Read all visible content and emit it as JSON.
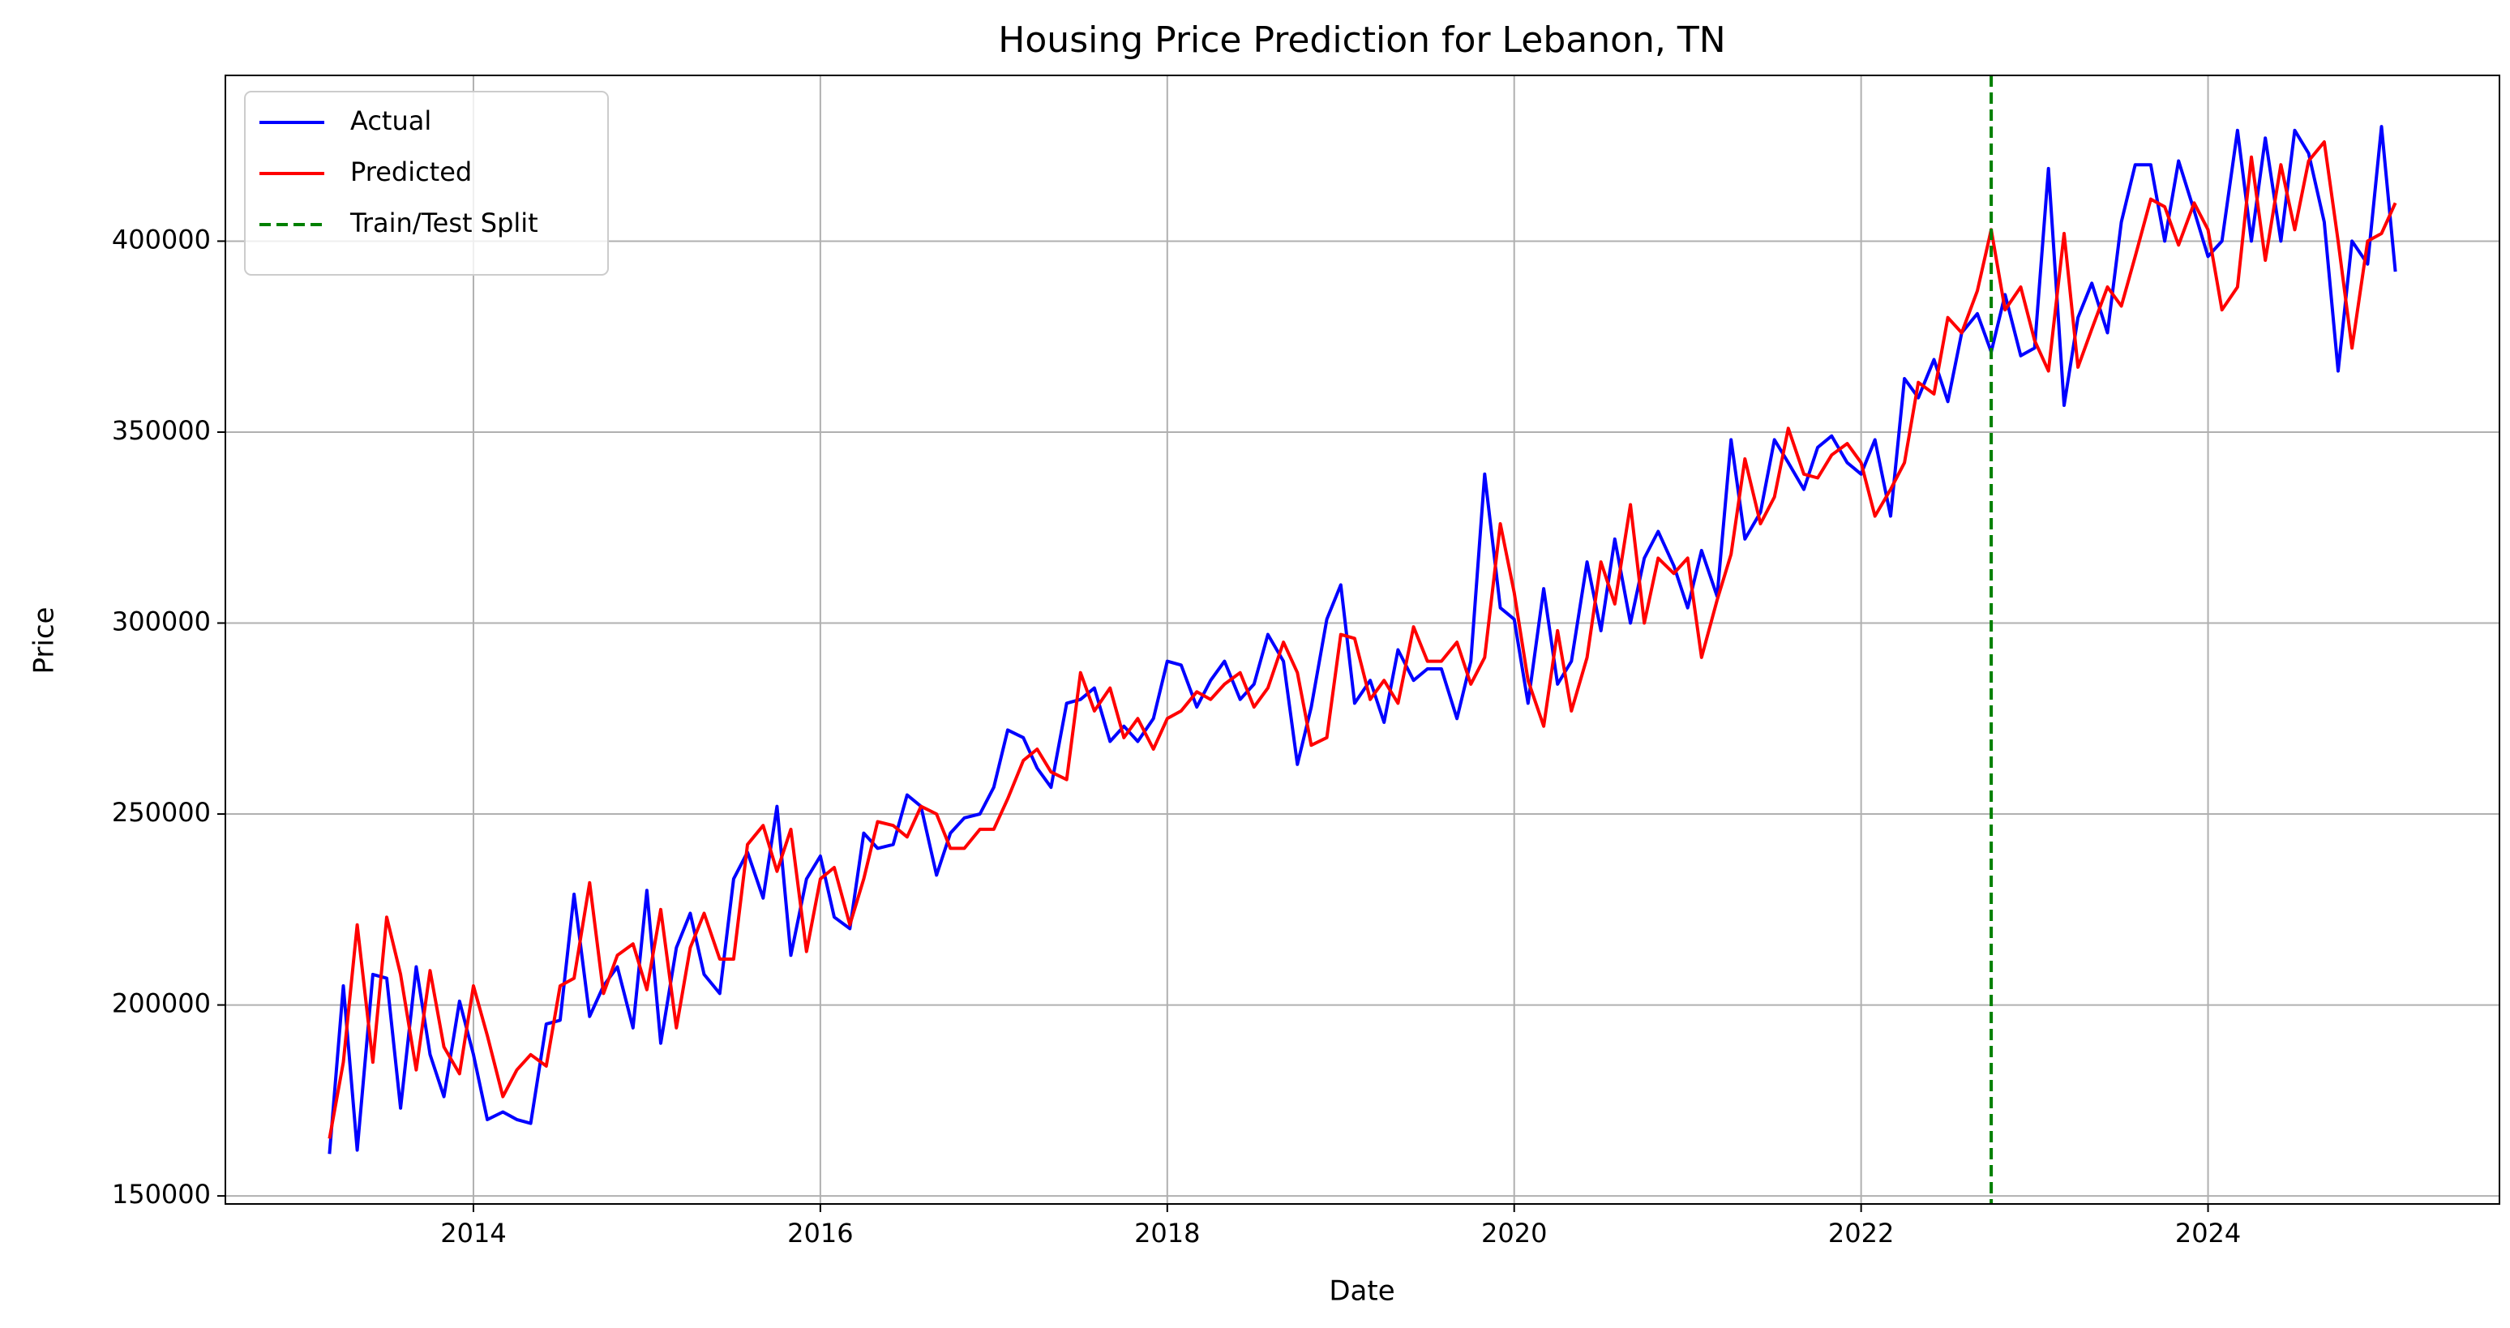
{
  "chart_data": {
    "type": "line",
    "title": "Housing Price Prediction for Lebanon, TN",
    "x_label": "Date",
    "y_label": "Price",
    "x": [
      2013.17,
      2013.25,
      2013.33,
      2013.42,
      2013.5,
      2013.58,
      2013.67,
      2013.75,
      2013.83,
      2013.92,
      2014.0,
      2014.08,
      2014.17,
      2014.25,
      2014.33,
      2014.42,
      2014.5,
      2014.58,
      2014.67,
      2014.75,
      2014.83,
      2014.92,
      2015.0,
      2015.08,
      2015.17,
      2015.25,
      2015.33,
      2015.42,
      2015.5,
      2015.58,
      2015.67,
      2015.75,
      2015.83,
      2015.92,
      2016.0,
      2016.08,
      2016.17,
      2016.25,
      2016.33,
      2016.42,
      2016.5,
      2016.58,
      2016.67,
      2016.75,
      2016.83,
      2016.92,
      2017.0,
      2017.08,
      2017.17,
      2017.25,
      2017.33,
      2017.42,
      2017.5,
      2017.58,
      2017.67,
      2017.75,
      2017.83,
      2017.92,
      2018.0,
      2018.08,
      2018.17,
      2018.25,
      2018.33,
      2018.42,
      2018.5,
      2018.58,
      2018.67,
      2018.75,
      2018.83,
      2018.92,
      2019.0,
      2019.08,
      2019.17,
      2019.25,
      2019.33,
      2019.42,
      2019.5,
      2019.58,
      2019.67,
      2019.75,
      2019.83,
      2019.92,
      2020.0,
      2020.08,
      2020.17,
      2020.25,
      2020.33,
      2020.42,
      2020.5,
      2020.58,
      2020.67,
      2020.75,
      2020.83,
      2020.92,
      2021.0,
      2021.08,
      2021.17,
      2021.25,
      2021.33,
      2021.42,
      2021.5,
      2021.58,
      2021.67,
      2021.75,
      2021.83,
      2021.92,
      2022.0,
      2022.08,
      2022.17,
      2022.25,
      2022.33,
      2022.42,
      2022.5,
      2022.58,
      2022.67,
      2022.75,
      2022.83,
      2022.92,
      2023.0,
      2023.08,
      2023.17,
      2023.25,
      2023.33,
      2023.42,
      2023.5,
      2023.58,
      2023.67,
      2023.75,
      2023.83,
      2023.92,
      2024.0,
      2024.08,
      2024.17,
      2024.25,
      2024.33,
      2024.42,
      2024.5,
      2024.58,
      2024.67,
      2024.75,
      2024.83,
      2024.92,
      2025.0,
      2025.08
    ],
    "series": [
      {
        "name": "Actual",
        "color": "#0000ff",
        "values": [
          161000,
          205000,
          162000,
          208000,
          207000,
          173000,
          210000,
          187000,
          176000,
          201000,
          187000,
          170000,
          172000,
          170000,
          169000,
          195000,
          196000,
          229000,
          197000,
          205000,
          210000,
          194000,
          230000,
          190000,
          215000,
          224000,
          208000,
          203000,
          233000,
          240000,
          228000,
          252000,
          213000,
          233000,
          239000,
          223000,
          220000,
          245000,
          241000,
          242000,
          255000,
          252000,
          234000,
          245000,
          249000,
          250000,
          257000,
          272000,
          270000,
          262000,
          257000,
          279000,
          280000,
          283000,
          269000,
          273000,
          269000,
          275000,
          290000,
          289000,
          278000,
          285000,
          290000,
          280000,
          284000,
          297000,
          290000,
          263000,
          278000,
          301000,
          310000,
          279000,
          285000,
          274000,
          293000,
          285000,
          288000,
          288000,
          275000,
          290000,
          339000,
          304000,
          301000,
          279000,
          309000,
          284000,
          290000,
          316000,
          298000,
          322000,
          300000,
          317000,
          324000,
          315000,
          304000,
          319000,
          307000,
          348000,
          322000,
          329000,
          348000,
          342000,
          335000,
          346000,
          349000,
          342000,
          339000,
          348000,
          328000,
          364000,
          359000,
          369000,
          358000,
          376000,
          381000,
          371000,
          386000,
          370000,
          372000,
          419000,
          357000,
          380000,
          389000,
          376000,
          405000,
          420000,
          420000,
          400000,
          421000,
          408000,
          396000,
          400000,
          429000,
          400000,
          427000,
          400000,
          429000,
          423000,
          405000,
          366000,
          400000,
          394000,
          430000,
          392000
        ]
      },
      {
        "name": "Predicted",
        "color": "#ff0000",
        "values": [
          165000,
          185000,
          221000,
          185000,
          223000,
          208000,
          183000,
          209000,
          189000,
          182000,
          205000,
          192000,
          176000,
          183000,
          187000,
          184000,
          205000,
          207000,
          232000,
          203000,
          213000,
          216000,
          204000,
          225000,
          194000,
          215000,
          224000,
          212000,
          212000,
          242000,
          247000,
          235000,
          246000,
          214000,
          233000,
          236000,
          221000,
          233000,
          248000,
          247000,
          244000,
          252000,
          250000,
          241000,
          241000,
          246000,
          246000,
          254000,
          264000,
          267000,
          261000,
          259000,
          287000,
          277000,
          283000,
          270000,
          275000,
          267000,
          275000,
          277000,
          282000,
          280000,
          284000,
          287000,
          278000,
          283000,
          295000,
          287000,
          268000,
          270000,
          297000,
          296000,
          280000,
          285000,
          279000,
          299000,
          290000,
          290000,
          295000,
          284000,
          291000,
          326000,
          308000,
          285000,
          273000,
          298000,
          277000,
          291000,
          316000,
          305000,
          331000,
          300000,
          317000,
          313000,
          317000,
          291000,
          306000,
          318000,
          343000,
          326000,
          333000,
          351000,
          339000,
          338000,
          344000,
          347000,
          342000,
          328000,
          335000,
          342000,
          363000,
          360000,
          380000,
          376000,
          387000,
          403000,
          382000,
          388000,
          374000,
          366000,
          402000,
          367000,
          377000,
          388000,
          383000,
          396000,
          411000,
          409000,
          399000,
          410000,
          403000,
          382000,
          388000,
          422000,
          395000,
          420000,
          403000,
          421000,
          426000,
          400000,
          372000,
          400000,
          402000,
          410000
        ]
      }
    ],
    "vlines": [
      {
        "name": "Train/Test Split",
        "color": "#008000",
        "x": 2022.75,
        "dashed": true
      }
    ],
    "xlim": [
      2012.57,
      2025.68
    ],
    "ylim": [
      147900,
      443400
    ],
    "xticks": [
      2014,
      2016,
      2018,
      2020,
      2022,
      2024
    ],
    "yticks": [
      150000,
      200000,
      250000,
      300000,
      350000,
      400000
    ],
    "grid": true,
    "legend": "upper left"
  }
}
